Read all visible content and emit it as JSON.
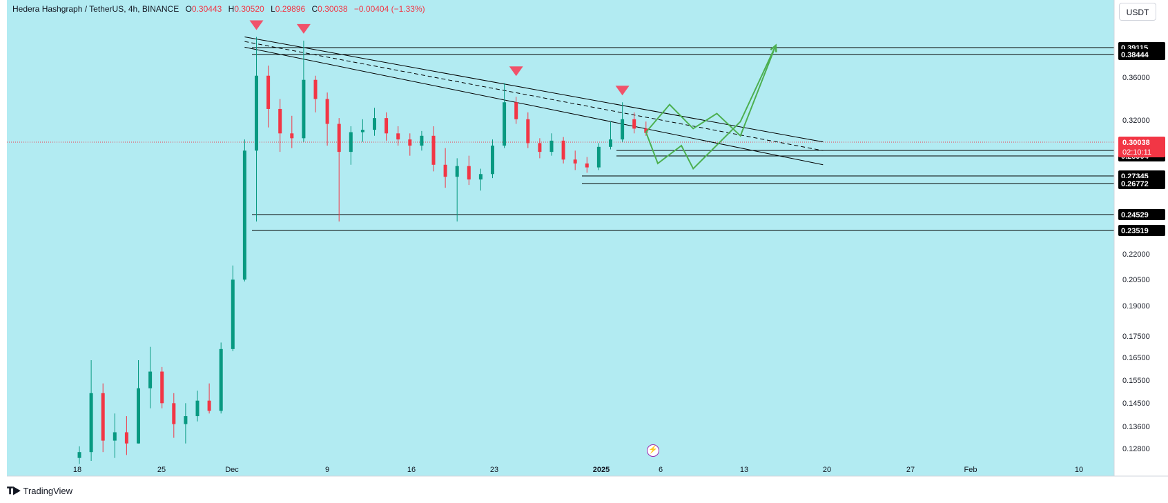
{
  "legend": {
    "symbol": "Hedera Hashgraph / TetherUS, 4h, BINANCE",
    "open_label": "O",
    "open": "0.30443",
    "high_label": "H",
    "high": "0.30520",
    "low_label": "L",
    "low": "0.29896",
    "close_label": "C",
    "close": "0.30038",
    "change": "−0.00404 (−1.33%)"
  },
  "currency_button": "USDT",
  "branding": "TradingView",
  "icons": {
    "event": "lightning-icon",
    "logo": "tradingview-logo-icon"
  },
  "colors": {
    "background": "#b2ebf2",
    "up": "#089981",
    "down": "#f23645",
    "projection": "#4caf50",
    "marker": "#f0526a"
  },
  "chart_data": {
    "type": "candlestick",
    "symbol": "HBARUSDT",
    "interval": "4h",
    "x_axis_ticks": [
      "18",
      "25",
      "Dec",
      "9",
      "16",
      "23",
      "2025",
      "6",
      "13",
      "20",
      "27",
      "Feb",
      "10"
    ],
    "y_axis_ticks": [
      "0.36000",
      "0.32000",
      "0.30038",
      "0.22000",
      "0.20500",
      "0.19000",
      "0.17500",
      "0.16500",
      "0.15500",
      "0.14500",
      "0.13600",
      "0.12800"
    ],
    "y_axis_scale": "log",
    "ylim": [
      0.121,
      0.41
    ],
    "last_price": {
      "value": "0.30038",
      "countdown": "02:10:11"
    },
    "horizontal_levels": [
      "0.39115",
      "0.38444",
      "0.29427",
      "0.28904",
      "0.27345",
      "0.26772",
      "0.24529",
      "0.23519"
    ],
    "resistance_markers": [
      {
        "date": "2024-12-03",
        "price": 0.392
      },
      {
        "date": "2024-12-07",
        "price": 0.388
      },
      {
        "date": "2024-12-25",
        "price": 0.345
      },
      {
        "date": "2025-01-03",
        "price": 0.327
      }
    ],
    "descending_channel": {
      "upper": [
        [
          "2024-12-02",
          0.392
        ],
        [
          "2025-01-20",
          0.293
        ]
      ],
      "middle_dashed": [
        [
          "2024-12-02",
          0.387
        ],
        [
          "2025-01-20",
          0.286
        ]
      ],
      "lower": [
        [
          "2024-12-02",
          0.381
        ],
        [
          "2025-01-20",
          0.275
        ]
      ]
    },
    "projection_path_1": [
      [
        "2025-01-05",
        0.301
      ],
      [
        "2025-01-07",
        0.325
      ],
      [
        "2025-01-09",
        0.304
      ],
      [
        "2025-01-11",
        0.317
      ],
      [
        "2025-01-13",
        0.298
      ],
      [
        "2025-01-16",
        0.383
      ]
    ],
    "projection_path_2": [
      [
        "2025-01-05",
        0.301
      ],
      [
        "2025-01-06",
        0.276
      ],
      [
        "2025-01-08",
        0.29
      ],
      [
        "2025-01-09",
        0.272
      ],
      [
        "2025-01-13",
        0.31
      ],
      [
        "2025-01-16",
        0.383
      ]
    ],
    "candles": [
      {
        "d": "2024-11-18",
        "o": 0.122,
        "h": 0.126,
        "l": 0.12,
        "c": 0.124
      },
      {
        "d": "2024-11-19",
        "o": 0.124,
        "h": 0.16,
        "l": 0.121,
        "c": 0.146
      },
      {
        "d": "2024-11-20",
        "o": 0.146,
        "h": 0.15,
        "l": 0.124,
        "c": 0.128
      },
      {
        "d": "2024-11-21",
        "o": 0.128,
        "h": 0.138,
        "l": 0.122,
        "c": 0.131
      },
      {
        "d": "2024-11-22",
        "o": 0.131,
        "h": 0.137,
        "l": 0.123,
        "c": 0.127
      },
      {
        "d": "2024-11-23",
        "o": 0.127,
        "h": 0.16,
        "l": 0.127,
        "c": 0.148
      },
      {
        "d": "2024-11-24",
        "o": 0.148,
        "h": 0.166,
        "l": 0.14,
        "c": 0.155
      },
      {
        "d": "2024-11-25",
        "o": 0.155,
        "h": 0.157,
        "l": 0.14,
        "c": 0.142
      },
      {
        "d": "2024-11-26",
        "o": 0.142,
        "h": 0.146,
        "l": 0.129,
        "c": 0.134
      },
      {
        "d": "2024-11-27",
        "o": 0.134,
        "h": 0.142,
        "l": 0.127,
        "c": 0.137
      },
      {
        "d": "2024-11-28",
        "o": 0.137,
        "h": 0.147,
        "l": 0.135,
        "c": 0.143
      },
      {
        "d": "2024-11-29",
        "o": 0.143,
        "h": 0.15,
        "l": 0.138,
        "c": 0.139
      },
      {
        "d": "2024-11-30",
        "o": 0.139,
        "h": 0.168,
        "l": 0.138,
        "c": 0.165
      },
      {
        "d": "2024-12-01",
        "o": 0.165,
        "h": 0.208,
        "l": 0.164,
        "c": 0.2
      },
      {
        "d": "2024-12-02",
        "o": 0.2,
        "h": 0.295,
        "l": 0.199,
        "c": 0.286
      },
      {
        "d": "2024-12-03",
        "o": 0.286,
        "h": 0.392,
        "l": 0.235,
        "c": 0.352
      },
      {
        "d": "2024-12-04",
        "o": 0.352,
        "h": 0.362,
        "l": 0.305,
        "c": 0.321
      },
      {
        "d": "2024-12-05",
        "o": 0.321,
        "h": 0.33,
        "l": 0.285,
        "c": 0.3
      },
      {
        "d": "2024-12-06",
        "o": 0.3,
        "h": 0.315,
        "l": 0.288,
        "c": 0.296
      },
      {
        "d": "2024-12-07",
        "o": 0.296,
        "h": 0.388,
        "l": 0.293,
        "c": 0.348
      },
      {
        "d": "2024-12-08",
        "o": 0.348,
        "h": 0.352,
        "l": 0.318,
        "c": 0.33
      },
      {
        "d": "2024-12-09",
        "o": 0.33,
        "h": 0.336,
        "l": 0.29,
        "c": 0.308
      },
      {
        "d": "2024-12-10",
        "o": 0.308,
        "h": 0.313,
        "l": 0.235,
        "c": 0.285
      },
      {
        "d": "2024-12-11",
        "o": 0.285,
        "h": 0.306,
        "l": 0.275,
        "c": 0.301
      },
      {
        "d": "2024-12-12",
        "o": 0.301,
        "h": 0.312,
        "l": 0.293,
        "c": 0.303
      },
      {
        "d": "2024-12-13",
        "o": 0.303,
        "h": 0.322,
        "l": 0.298,
        "c": 0.313
      },
      {
        "d": "2024-12-14",
        "o": 0.313,
        "h": 0.318,
        "l": 0.294,
        "c": 0.3
      },
      {
        "d": "2024-12-15",
        "o": 0.3,
        "h": 0.306,
        "l": 0.29,
        "c": 0.295
      },
      {
        "d": "2024-12-16",
        "o": 0.295,
        "h": 0.3,
        "l": 0.282,
        "c": 0.29
      },
      {
        "d": "2024-12-17",
        "o": 0.29,
        "h": 0.302,
        "l": 0.286,
        "c": 0.298
      },
      {
        "d": "2024-12-18",
        "o": 0.298,
        "h": 0.306,
        "l": 0.27,
        "c": 0.275
      },
      {
        "d": "2024-12-19",
        "o": 0.275,
        "h": 0.288,
        "l": 0.258,
        "c": 0.266
      },
      {
        "d": "2024-12-20",
        "o": 0.266,
        "h": 0.28,
        "l": 0.235,
        "c": 0.274
      },
      {
        "d": "2024-12-21",
        "o": 0.274,
        "h": 0.282,
        "l": 0.26,
        "c": 0.264
      },
      {
        "d": "2024-12-22",
        "o": 0.264,
        "h": 0.272,
        "l": 0.256,
        "c": 0.268
      },
      {
        "d": "2024-12-23",
        "o": 0.268,
        "h": 0.295,
        "l": 0.265,
        "c": 0.29
      },
      {
        "d": "2024-12-24",
        "o": 0.29,
        "h": 0.345,
        "l": 0.288,
        "c": 0.327
      },
      {
        "d": "2024-12-25",
        "o": 0.327,
        "h": 0.332,
        "l": 0.308,
        "c": 0.312
      },
      {
        "d": "2024-12-26",
        "o": 0.312,
        "h": 0.318,
        "l": 0.288,
        "c": 0.292
      },
      {
        "d": "2024-12-27",
        "o": 0.292,
        "h": 0.296,
        "l": 0.28,
        "c": 0.285
      },
      {
        "d": "2024-12-28",
        "o": 0.285,
        "h": 0.3,
        "l": 0.282,
        "c": 0.294
      },
      {
        "d": "2024-12-29",
        "o": 0.294,
        "h": 0.297,
        "l": 0.276,
        "c": 0.279
      },
      {
        "d": "2024-12-30",
        "o": 0.279,
        "h": 0.286,
        "l": 0.271,
        "c": 0.276
      },
      {
        "d": "2024-12-31",
        "o": 0.276,
        "h": 0.281,
        "l": 0.269,
        "c": 0.273
      },
      {
        "d": "2025-01-01",
        "o": 0.273,
        "h": 0.292,
        "l": 0.271,
        "c": 0.289
      },
      {
        "d": "2025-01-02",
        "o": 0.289,
        "h": 0.31,
        "l": 0.287,
        "c": 0.295
      },
      {
        "d": "2025-01-03",
        "o": 0.295,
        "h": 0.327,
        "l": 0.293,
        "c": 0.312
      },
      {
        "d": "2025-01-04",
        "o": 0.312,
        "h": 0.318,
        "l": 0.3,
        "c": 0.304
      },
      {
        "d": "2025-01-05",
        "o": 0.304,
        "h": 0.31,
        "l": 0.298,
        "c": 0.30038
      }
    ]
  }
}
